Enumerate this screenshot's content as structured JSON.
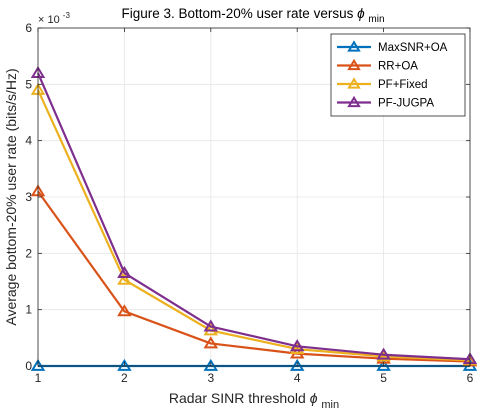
{
  "chart_data": {
    "type": "line",
    "title": "Figure 3. Bottom-20% user rate versus",
    "title_symbol": "ϕ",
    "title_subscript": "min",
    "xlabel": "Radar SINR threshold",
    "xlabel_symbol": "ϕ",
    "xlabel_subscript": "min",
    "ylabel": "Average bottom-20% user rate (bits/s/Hz)",
    "y_exponent_base": "× 10",
    "y_exponent_power": "-3",
    "x": [
      1,
      2,
      3,
      4,
      5,
      6
    ],
    "xlim": [
      1,
      6
    ],
    "ylim": [
      0,
      6
    ],
    "x_ticks": [
      "1",
      "2",
      "3",
      "4",
      "5",
      "6"
    ],
    "y_ticks": [
      "0",
      "1",
      "2",
      "3",
      "4",
      "5",
      "6"
    ],
    "grid": true,
    "legend_position": "top-right",
    "series": [
      {
        "name": "MaxSNR+OA",
        "color": "#0072BD",
        "values": [
          0.0,
          0.0,
          0.0,
          0.0,
          0.0,
          0.0
        ]
      },
      {
        "name": "RR+OA",
        "color": "#D95319",
        "values": [
          3.1,
          0.97,
          0.4,
          0.22,
          0.13,
          0.08
        ]
      },
      {
        "name": "PF+Fixed",
        "color": "#EDB120",
        "values": [
          4.9,
          1.53,
          0.63,
          0.3,
          0.17,
          0.1
        ]
      },
      {
        "name": "PF-JUGPA",
        "color": "#7E2F8E",
        "values": [
          5.2,
          1.65,
          0.7,
          0.35,
          0.2,
          0.12
        ]
      }
    ]
  }
}
